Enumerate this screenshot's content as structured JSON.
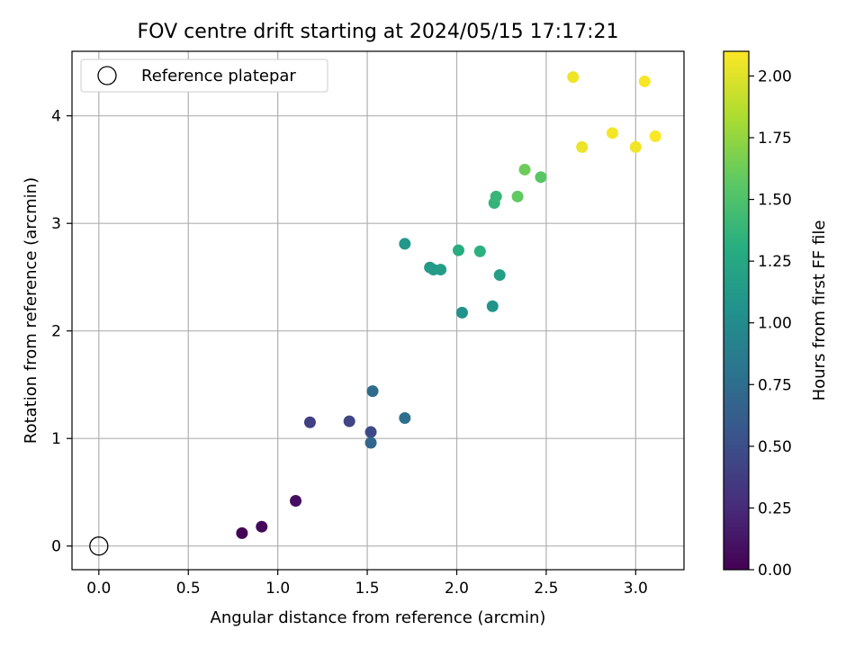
{
  "chart_data": {
    "type": "scatter",
    "title": "FOV centre drift starting at 2024/05/15 17:17:21",
    "xlabel": "Angular distance from reference (arcmin)",
    "ylabel": "Rotation from reference (arcmin)",
    "xlim": [
      -0.15,
      3.27
    ],
    "ylim": [
      -0.22,
      4.6
    ],
    "grid": true,
    "legend_position": "top-left",
    "x_ticks": [
      "0.0",
      "0.5",
      "1.0",
      "1.5",
      "2.0",
      "2.5",
      "3.0"
    ],
    "y_ticks": [
      "0",
      "1",
      "2",
      "3",
      "4"
    ],
    "colorbar": {
      "label": "Hours from first FF file",
      "range": [
        0.0,
        2.1
      ],
      "colormap": "viridis",
      "ticks": [
        "0.00",
        "0.25",
        "0.50",
        "0.75",
        "1.00",
        "1.25",
        "1.50",
        "1.75",
        "2.00"
      ]
    },
    "reference": {
      "name": "Reference platepar",
      "x": 0.0,
      "y": 0.0
    },
    "points": [
      {
        "x": 0.8,
        "y": 0.12,
        "hours": 0.02
      },
      {
        "x": 0.91,
        "y": 0.18,
        "hours": 0.05
      },
      {
        "x": 1.1,
        "y": 0.42,
        "hours": 0.08
      },
      {
        "x": 1.18,
        "y": 1.15,
        "hours": 0.4
      },
      {
        "x": 1.4,
        "y": 1.16,
        "hours": 0.43
      },
      {
        "x": 1.52,
        "y": 1.06,
        "hours": 0.47
      },
      {
        "x": 1.52,
        "y": 0.96,
        "hours": 0.7
      },
      {
        "x": 1.53,
        "y": 1.44,
        "hours": 0.73
      },
      {
        "x": 1.71,
        "y": 1.19,
        "hours": 0.76
      },
      {
        "x": 1.71,
        "y": 2.81,
        "hours": 1.1
      },
      {
        "x": 1.85,
        "y": 2.59,
        "hours": 1.12
      },
      {
        "x": 1.87,
        "y": 2.57,
        "hours": 1.14
      },
      {
        "x": 1.91,
        "y": 2.57,
        "hours": 1.16
      },
      {
        "x": 2.01,
        "y": 2.75,
        "hours": 1.3
      },
      {
        "x": 2.03,
        "y": 2.17,
        "hours": 1.06
      },
      {
        "x": 2.13,
        "y": 2.74,
        "hours": 1.33
      },
      {
        "x": 2.2,
        "y": 2.23,
        "hours": 1.09
      },
      {
        "x": 2.21,
        "y": 3.19,
        "hours": 1.36
      },
      {
        "x": 2.22,
        "y": 3.25,
        "hours": 1.39
      },
      {
        "x": 2.24,
        "y": 2.52,
        "hours": 1.18
      },
      {
        "x": 2.34,
        "y": 3.25,
        "hours": 1.58
      },
      {
        "x": 2.38,
        "y": 3.5,
        "hours": 1.62
      },
      {
        "x": 2.47,
        "y": 3.43,
        "hours": 1.55
      },
      {
        "x": 2.65,
        "y": 4.36,
        "hours": 2.05
      },
      {
        "x": 2.7,
        "y": 3.71,
        "hours": 2.04
      },
      {
        "x": 2.87,
        "y": 3.84,
        "hours": 2.07
      },
      {
        "x": 3.0,
        "y": 3.71,
        "hours": 2.06
      },
      {
        "x": 3.05,
        "y": 4.32,
        "hours": 2.08
      },
      {
        "x": 3.11,
        "y": 3.81,
        "hours": 2.09
      }
    ]
  }
}
